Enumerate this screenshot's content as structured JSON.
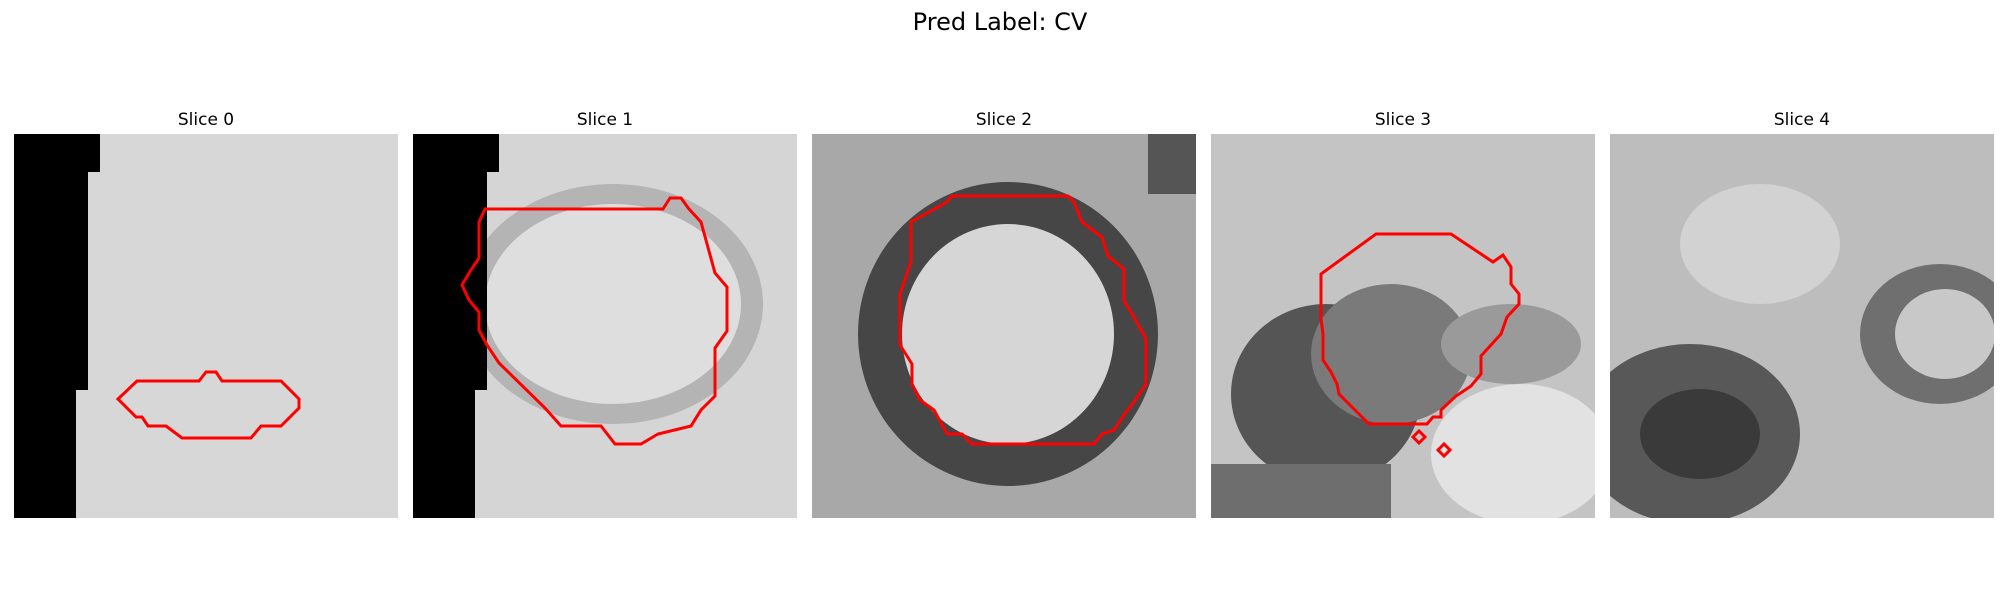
{
  "figure": {
    "title": "Pred Label: CV"
  },
  "panels": [
    {
      "label": "Slice 0"
    },
    {
      "label": "Slice 1"
    },
    {
      "label": "Slice 2"
    },
    {
      "label": "Slice 3"
    },
    {
      "label": "Slice 4"
    }
  ],
  "colors": {
    "contour": "#ff0000",
    "background": "#ffffff"
  }
}
